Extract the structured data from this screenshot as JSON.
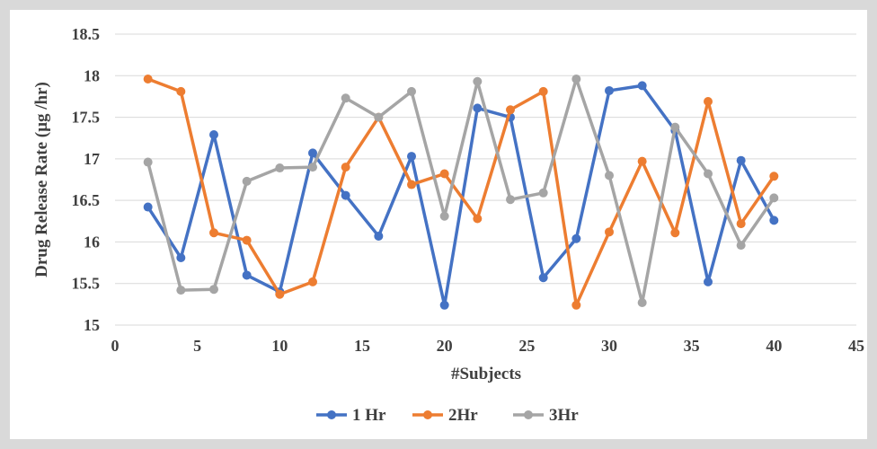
{
  "chart_data": {
    "type": "line",
    "xlabel": "#Subjects",
    "ylabel": "Drug Release Rate (µg /hr)",
    "xlim": [
      0,
      45
    ],
    "ylim": [
      15,
      18.5
    ],
    "x_ticks": [
      "0",
      "5",
      "10",
      "15",
      "20",
      "25",
      "30",
      "35",
      "40",
      "45"
    ],
    "y_ticks": [
      "15",
      "15.5",
      "16",
      "16.5",
      "17",
      "17.5",
      "18",
      "18.5"
    ],
    "x_tick_values": [
      0,
      5,
      10,
      15,
      20,
      25,
      30,
      35,
      40,
      45
    ],
    "y_tick_values": [
      15,
      15.5,
      16,
      16.5,
      17,
      17.5,
      18,
      18.5
    ],
    "grid": "horizontal",
    "legend_position": "bottom",
    "x": [
      2,
      4,
      6,
      8,
      10,
      12,
      14,
      16,
      18,
      20,
      22,
      24,
      26,
      28,
      30,
      32,
      34,
      36,
      38,
      40
    ],
    "series": [
      {
        "name": "1 Hr",
        "color": "#4472c4",
        "values": [
          16.42,
          15.81,
          17.29,
          15.6,
          15.4,
          17.07,
          16.56,
          16.07,
          17.03,
          15.24,
          17.61,
          17.5,
          15.57,
          16.04,
          17.82,
          17.88,
          17.34,
          15.52,
          16.98,
          16.26
        ]
      },
      {
        "name": "2Hr",
        "color": "#ed7d31",
        "values": [
          17.96,
          17.81,
          16.11,
          16.02,
          15.37,
          15.52,
          16.9,
          17.5,
          16.69,
          16.82,
          16.28,
          17.59,
          17.81,
          15.24,
          16.12,
          16.97,
          16.11,
          17.69,
          16.22,
          16.79
        ]
      },
      {
        "name": "3Hr",
        "color": "#a5a5a5",
        "values": [
          16.96,
          15.42,
          15.43,
          16.73,
          16.89,
          16.9,
          17.73,
          17.5,
          17.81,
          16.31,
          17.93,
          16.51,
          16.59,
          17.96,
          16.8,
          15.27,
          17.38,
          16.82,
          15.96,
          16.53
        ]
      }
    ]
  }
}
